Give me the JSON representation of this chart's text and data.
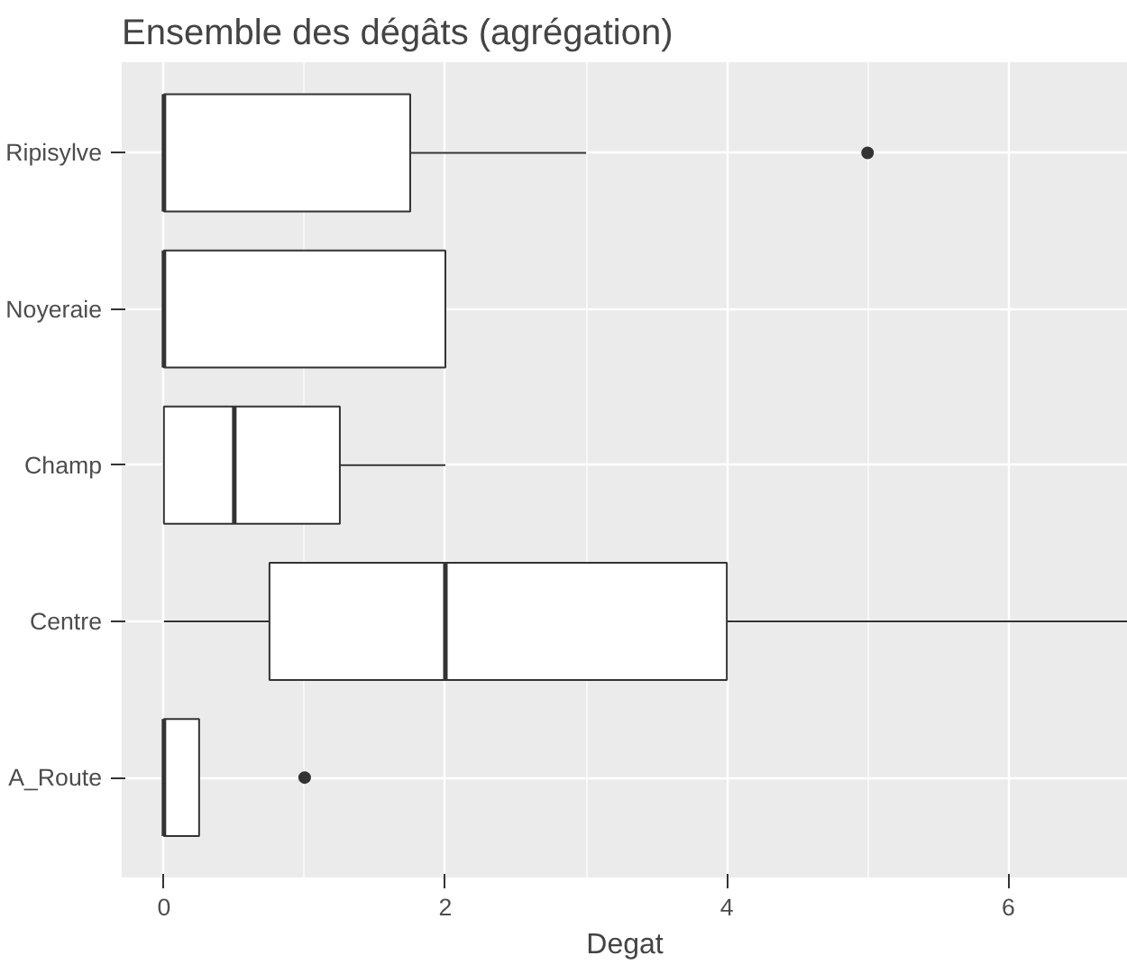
{
  "chart_data": {
    "type": "box",
    "orientation": "horizontal",
    "title": "Ensemble des dégâts (agrégation)",
    "xlabel": "Degat",
    "categories": [
      "Ripisylve",
      "Noyeraie",
      "Champ",
      "Centre",
      "A_Route"
    ],
    "boxes": [
      {
        "low": 0,
        "q1": 0,
        "median": 0,
        "q3": 1.75,
        "high": 3,
        "outliers": [
          5
        ]
      },
      {
        "low": 0,
        "q1": 0,
        "median": 0,
        "q3": 2,
        "high": 2
      },
      {
        "low": 0,
        "q1": 0,
        "median": 0.5,
        "q3": 1.25,
        "high": 2
      },
      {
        "low": 0,
        "q1": 0.75,
        "median": 2,
        "q3": 4,
        "high": 6.85
      },
      {
        "low": 0,
        "q1": 0,
        "median": 0,
        "q3": 0.25,
        "high": 0.25,
        "outliers": [
          1
        ]
      }
    ],
    "xlim": [
      -0.3,
      6.85
    ],
    "xticks": [
      0,
      2,
      4,
      6
    ],
    "grid": true,
    "color": "#ffffff"
  }
}
